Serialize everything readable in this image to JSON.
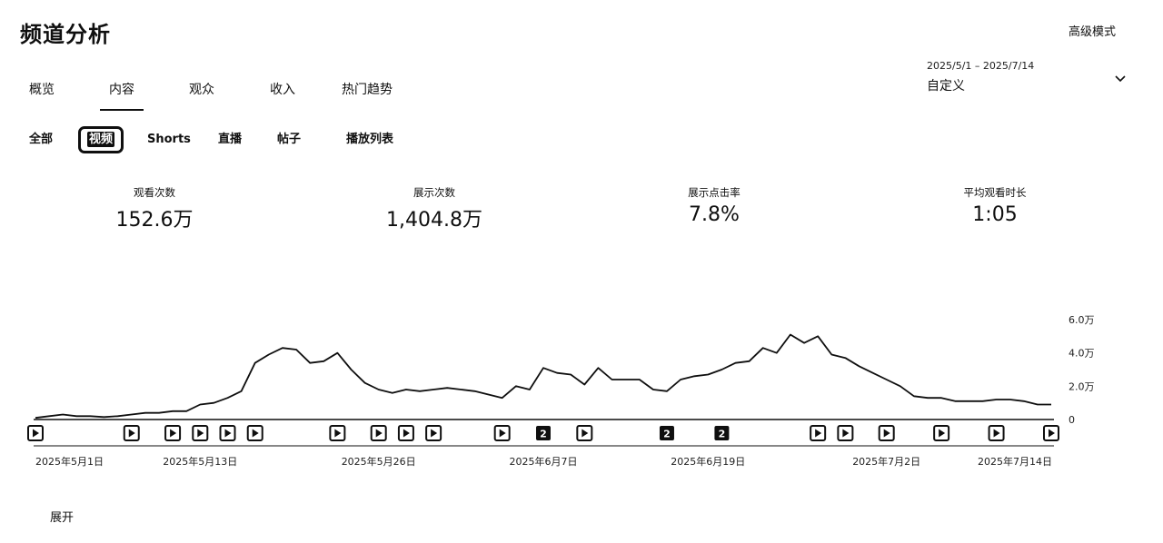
{
  "header": {
    "title": "频道分析",
    "advanced_mode": "高级模式"
  },
  "date_range": {
    "range": "2025/5/1 – 2025/7/14",
    "preset": "自定义"
  },
  "tabs": [
    {
      "label": "概览"
    },
    {
      "label": "内容"
    },
    {
      "label": "观众"
    },
    {
      "label": "收入"
    },
    {
      "label": "热门趋势"
    }
  ],
  "active_tab": "内容",
  "subtabs": [
    {
      "label": "全部"
    },
    {
      "label": "视频"
    },
    {
      "label": "Shorts"
    },
    {
      "label": "直播"
    },
    {
      "label": "帖子"
    },
    {
      "label": "播放列表"
    }
  ],
  "active_subtab": "视频",
  "metrics": [
    {
      "label": "观看次数",
      "value": "152.6万"
    },
    {
      "label": "展示次数",
      "value": "1,404.8万"
    },
    {
      "label": "展示点击率",
      "value": "7.8%"
    },
    {
      "label": "平均观看时长",
      "value": "1:05"
    }
  ],
  "expand_label": "展开",
  "chart_data": {
    "type": "line",
    "y_unit": "万",
    "ylim": [
      0,
      6
    ],
    "y_ticks": [
      {
        "value": 0,
        "label": "0"
      },
      {
        "value": 2,
        "label": "2.0万"
      },
      {
        "value": 4,
        "label": "4.0万"
      },
      {
        "value": 6,
        "label": "6.0万"
      }
    ],
    "x_labels": [
      "2025年5月1日",
      "2025年5月13日",
      "2025年5月26日",
      "2025年6月7日",
      "2025年6月19日",
      "2025年7月2日",
      "2025年7月14日"
    ],
    "x_label_days": [
      1,
      13,
      26,
      38,
      50,
      63,
      75
    ],
    "days": [
      1,
      2,
      3,
      4,
      5,
      6,
      7,
      8,
      9,
      10,
      11,
      12,
      13,
      14,
      15,
      16,
      17,
      18,
      19,
      20,
      21,
      22,
      23,
      24,
      25,
      26,
      27,
      28,
      29,
      30,
      31,
      32,
      33,
      34,
      35,
      36,
      37,
      38,
      39,
      40,
      41,
      42,
      43,
      44,
      45,
      46,
      47,
      48,
      49,
      50,
      51,
      52,
      53,
      54,
      55,
      56,
      57,
      58,
      59,
      60,
      61,
      62,
      63,
      64,
      65,
      66,
      67,
      68,
      69,
      70,
      71,
      72,
      73,
      74,
      75
    ],
    "values": [
      0.1,
      0.2,
      0.3,
      0.2,
      0.2,
      0.15,
      0.2,
      0.3,
      0.4,
      0.4,
      0.5,
      0.5,
      0.9,
      1.0,
      1.3,
      1.7,
      3.4,
      3.9,
      4.3,
      4.2,
      3.4,
      3.5,
      4.0,
      3.0,
      2.2,
      1.8,
      1.6,
      1.8,
      1.7,
      1.8,
      1.9,
      1.8,
      1.7,
      1.5,
      1.3,
      2.0,
      1.8,
      3.1,
      2.8,
      2.7,
      2.1,
      3.1,
      2.4,
      2.4,
      2.4,
      1.8,
      1.7,
      2.4,
      2.6,
      2.7,
      3.0,
      3.4,
      3.5,
      4.3,
      4.0,
      5.1,
      4.6,
      5.0,
      3.9,
      3.7,
      3.2,
      2.8,
      2.4,
      2.0,
      1.4,
      1.3,
      1.3,
      1.1,
      1.1,
      1.1,
      1.2,
      1.2,
      1.1,
      0.9,
      0.9
    ],
    "publish_markers": [
      {
        "day": 1,
        "type": "play"
      },
      {
        "day": 8,
        "type": "play"
      },
      {
        "day": 11,
        "type": "play"
      },
      {
        "day": 13,
        "type": "play"
      },
      {
        "day": 15,
        "type": "play"
      },
      {
        "day": 17,
        "type": "play"
      },
      {
        "day": 23,
        "type": "play"
      },
      {
        "day": 26,
        "type": "play"
      },
      {
        "day": 28,
        "type": "play"
      },
      {
        "day": 30,
        "type": "play"
      },
      {
        "day": 35,
        "type": "play"
      },
      {
        "day": 38,
        "type": "count",
        "count": "2"
      },
      {
        "day": 41,
        "type": "play"
      },
      {
        "day": 47,
        "type": "count",
        "count": "2"
      },
      {
        "day": 51,
        "type": "count",
        "count": "2"
      },
      {
        "day": 58,
        "type": "play"
      },
      {
        "day": 60,
        "type": "play"
      },
      {
        "day": 63,
        "type": "play"
      },
      {
        "day": 67,
        "type": "play"
      },
      {
        "day": 71,
        "type": "play"
      },
      {
        "day": 75,
        "type": "play"
      }
    ]
  }
}
